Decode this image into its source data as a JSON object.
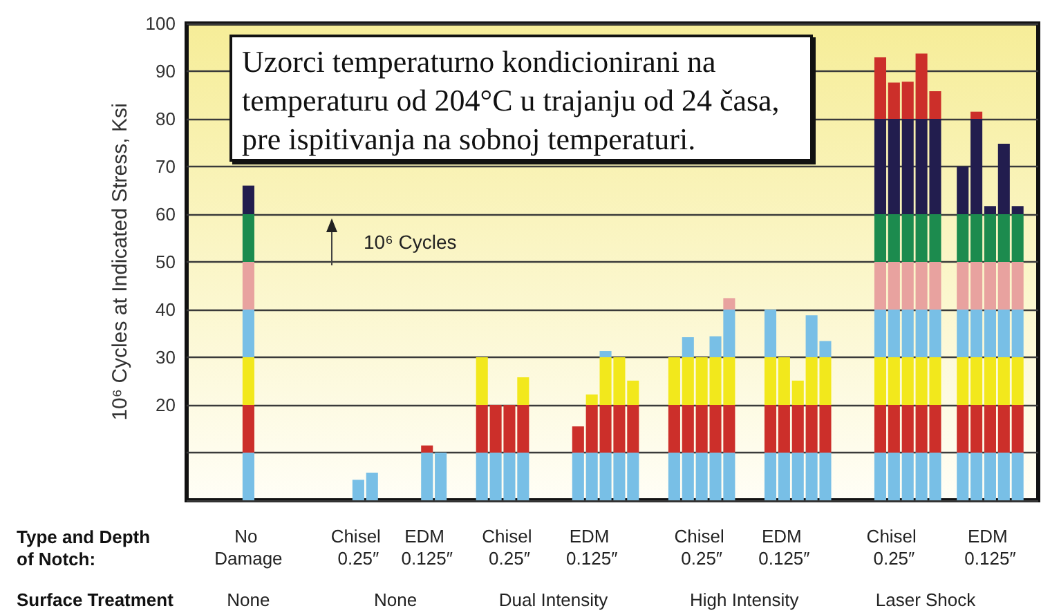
{
  "chart_data": {
    "type": "bar",
    "stacked": true,
    "ylabel": "10⁶ Cycles at Indicated Stress, Ksi",
    "xlabel": "Type and Depth of Notch:",
    "categories": [
      null,
      null,
      null,
      null,
      "No Damage",
      null,
      null,
      null,
      null,
      null,
      null,
      null,
      "Chisel 0.25″",
      null,
      null,
      null,
      null,
      "EDM 0.125″",
      null,
      null,
      null,
      null,
      null,
      "Chisel 0.25″",
      null,
      null,
      null,
      null,
      null,
      "EDM 0.125″",
      null,
      null,
      null,
      null,
      null,
      null,
      null,
      "Chisel 0.25″",
      null,
      null,
      null,
      null,
      null,
      "EDM 0.125″",
      null,
      null,
      null,
      null,
      null,
      null,
      null,
      "Chisel 0.25″",
      null,
      null,
      null,
      null,
      null,
      null,
      "EDM 0.125″",
      null,
      null,
      null
    ],
    "series": [
      {
        "color": "#78bfe6",
        "values": [
          null,
          null,
          null,
          null,
          10,
          null,
          null,
          null,
          null,
          null,
          null,
          null,
          4.3,
          5.8,
          null,
          null,
          null,
          10,
          10,
          null,
          null,
          10,
          10,
          10,
          10,
          null,
          null,
          null,
          10,
          10,
          10,
          10,
          10,
          null,
          null,
          10,
          10,
          10,
          10,
          10,
          null,
          null,
          10,
          10,
          10,
          10,
          10,
          null,
          null,
          null,
          10,
          10,
          10,
          10,
          10,
          null,
          10,
          10,
          10,
          10,
          10,
          null
        ]
      },
      {
        "color": "#cc2f2a",
        "values": [
          null,
          null,
          null,
          null,
          10,
          null,
          null,
          null,
          null,
          null,
          null,
          null,
          null,
          null,
          null,
          null,
          null,
          1.5,
          null,
          null,
          null,
          10,
          10,
          10,
          10,
          null,
          null,
          null,
          5.5,
          10,
          10,
          10,
          10,
          null,
          null,
          10,
          10,
          10,
          10,
          10,
          null,
          null,
          10,
          10,
          10,
          10,
          10,
          null,
          null,
          null,
          10,
          10,
          10,
          10,
          10,
          null,
          10,
          10,
          10,
          10,
          10,
          null
        ]
      },
      {
        "color": "#f2e81c",
        "values": [
          null,
          null,
          null,
          null,
          10,
          null,
          null,
          null,
          null,
          null,
          null,
          null,
          null,
          null,
          null,
          null,
          null,
          null,
          null,
          null,
          null,
          10,
          null,
          null,
          5.8,
          null,
          null,
          null,
          null,
          2.2,
          10,
          10,
          5.1,
          null,
          null,
          10,
          10,
          10,
          10,
          10,
          null,
          null,
          10,
          10,
          5.1,
          10,
          10,
          null,
          null,
          null,
          10,
          10,
          10,
          10,
          10,
          null,
          10,
          10,
          10,
          10,
          10,
          null
        ]
      },
      {
        "color": "#78bfe6",
        "values": [
          null,
          null,
          null,
          null,
          10,
          null,
          null,
          null,
          null,
          null,
          null,
          null,
          null,
          null,
          null,
          null,
          null,
          null,
          null,
          null,
          null,
          null,
          null,
          null,
          null,
          null,
          null,
          null,
          null,
          null,
          1.3,
          null,
          null,
          null,
          null,
          null,
          4.2,
          null,
          4.4,
          10,
          null,
          null,
          10,
          null,
          null,
          8.8,
          3.4,
          null,
          null,
          null,
          10,
          10,
          10,
          10,
          10,
          null,
          10,
          10,
          10,
          10,
          10,
          null
        ]
      },
      {
        "color": "#e8a29f",
        "values": [
          null,
          null,
          null,
          null,
          10,
          null,
          null,
          null,
          null,
          null,
          null,
          null,
          null,
          null,
          null,
          null,
          null,
          null,
          null,
          null,
          null,
          null,
          null,
          null,
          null,
          null,
          null,
          null,
          null,
          null,
          null,
          null,
          null,
          null,
          null,
          null,
          null,
          null,
          null,
          2.4,
          null,
          null,
          null,
          null,
          null,
          null,
          null,
          null,
          null,
          null,
          10,
          10,
          10,
          10,
          10,
          null,
          10,
          10,
          10,
          10,
          10,
          null
        ]
      },
      {
        "color": "#1c8b4e",
        "values": [
          null,
          null,
          null,
          null,
          10,
          null,
          null,
          null,
          null,
          null,
          null,
          null,
          null,
          null,
          null,
          null,
          null,
          null,
          null,
          null,
          null,
          null,
          null,
          null,
          null,
          null,
          null,
          null,
          null,
          null,
          null,
          null,
          null,
          null,
          null,
          null,
          null,
          null,
          null,
          null,
          null,
          null,
          null,
          null,
          null,
          null,
          null,
          null,
          null,
          null,
          10,
          10,
          10,
          10,
          10,
          null,
          10,
          10,
          10,
          10,
          10,
          null
        ]
      },
      {
        "color": "#221d4e",
        "values": [
          null,
          null,
          null,
          null,
          6.0,
          null,
          null,
          null,
          null,
          null,
          null,
          null,
          null,
          null,
          null,
          null,
          null,
          null,
          null,
          null,
          null,
          null,
          null,
          null,
          null,
          null,
          null,
          null,
          null,
          null,
          null,
          null,
          null,
          null,
          null,
          null,
          null,
          null,
          null,
          null,
          null,
          null,
          null,
          null,
          null,
          null,
          null,
          null,
          null,
          null,
          20,
          20,
          20,
          20,
          20,
          null,
          10,
          20,
          1.7,
          14.8,
          1.7,
          null
        ]
      },
      {
        "color": "#cc2f2a",
        "values": [
          null,
          null,
          null,
          null,
          null,
          null,
          null,
          null,
          null,
          null,
          null,
          null,
          null,
          null,
          null,
          null,
          null,
          null,
          null,
          null,
          null,
          null,
          null,
          null,
          null,
          null,
          null,
          null,
          null,
          null,
          null,
          null,
          null,
          null,
          null,
          null,
          null,
          null,
          null,
          null,
          null,
          null,
          null,
          null,
          null,
          null,
          null,
          null,
          null,
          null,
          12.9,
          7.6,
          7.8,
          13.7,
          5.8,
          null,
          null,
          1.5,
          null,
          null,
          null,
          null
        ]
      }
    ],
    "ylim": [
      0,
      100
    ],
    "yticks": [
      {
        "value": 10,
        "label": null
      },
      20,
      30,
      40,
      50,
      60,
      70,
      80,
      90,
      100
    ],
    "grid": "y",
    "annotations": [
      "Uzorci temperaturno kondicionirani na temperaturu od 204°C u trajanju od 24 časa, pre ispitivanja na sobnoj temperaturi.",
      "10⁶ Cycles",
      "Surface Treatment",
      "None",
      "None",
      "Dual Intensity",
      "High Intensity",
      "Laser Shock"
    ]
  }
}
